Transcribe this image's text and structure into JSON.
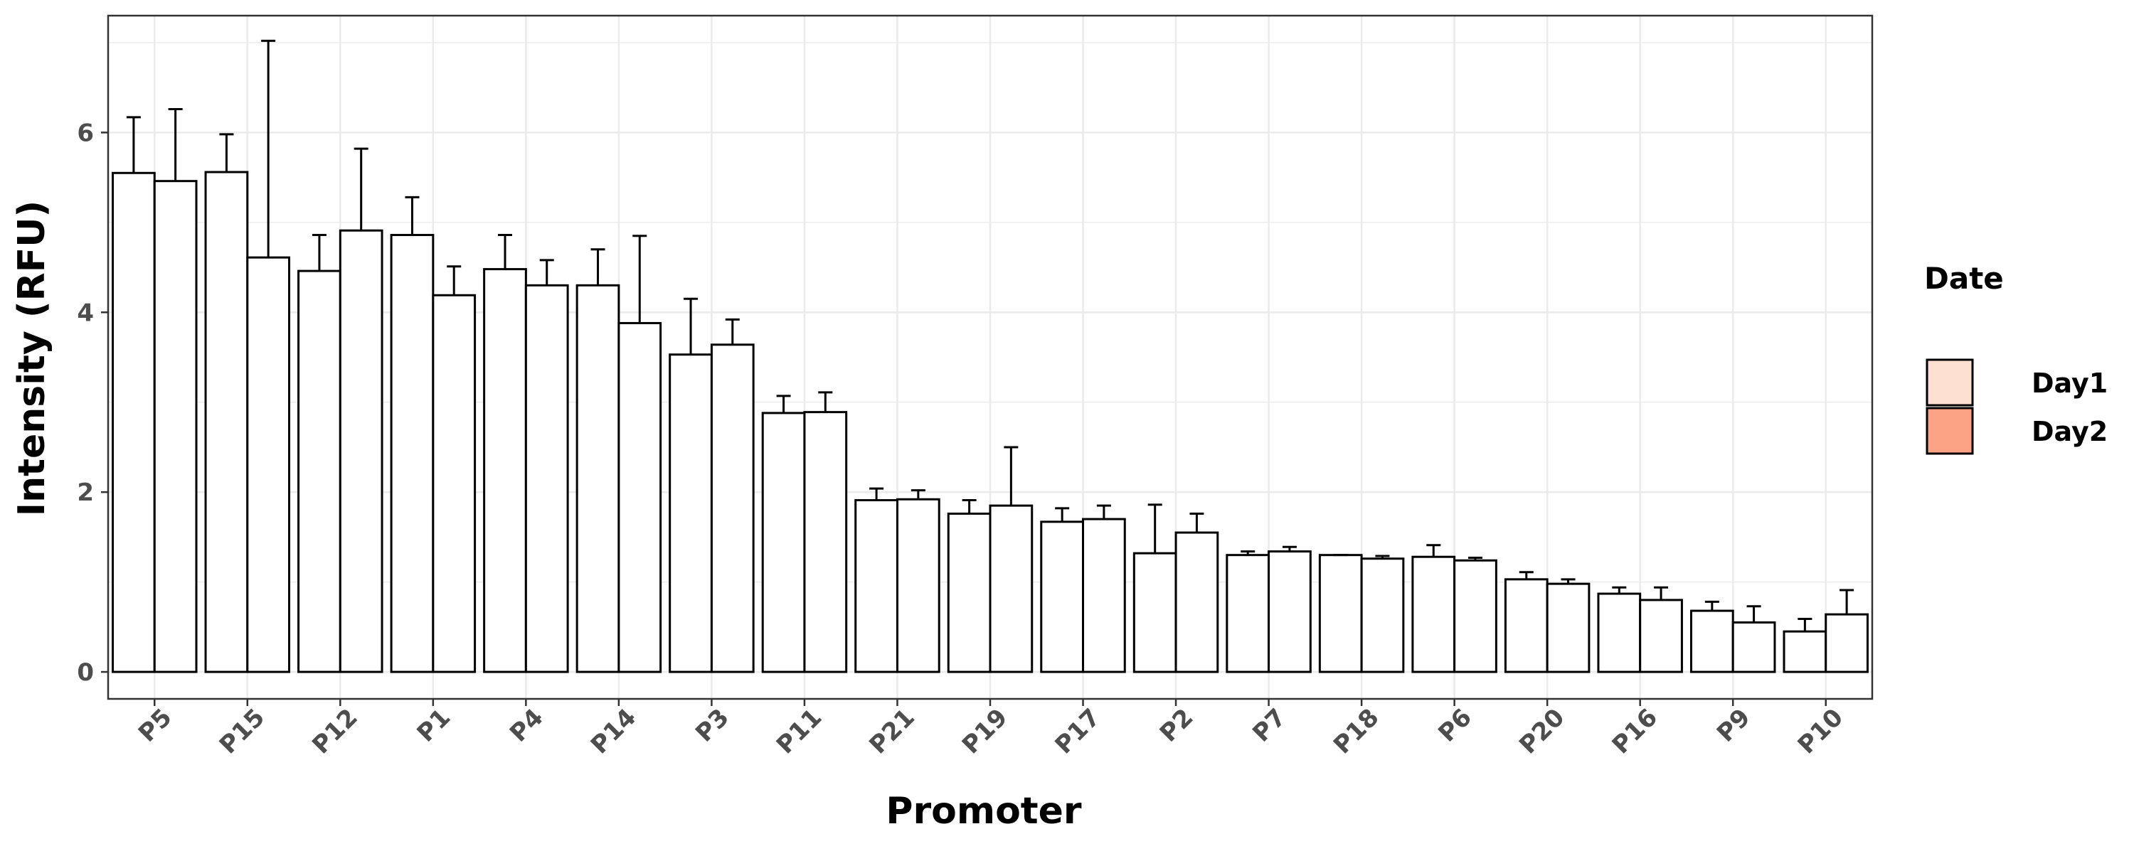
{
  "chart_data": {
    "type": "bar",
    "categories": [
      "P5",
      "P15",
      "P12",
      "P1",
      "P4",
      "P14",
      "P3",
      "P11",
      "P21",
      "P19",
      "P17",
      "P2",
      "P7",
      "P18",
      "P6",
      "P20",
      "P16",
      "P9",
      "P10"
    ],
    "series": [
      {
        "name": "Day1",
        "color": "#FEE0D2",
        "values": [
          5.55,
          5.56,
          4.46,
          4.86,
          4.48,
          4.3,
          3.53,
          2.88,
          1.91,
          1.76,
          1.67,
          1.32,
          1.3,
          1.3,
          1.28,
          1.03,
          0.87,
          0.68,
          0.45
        ],
        "error": [
          0.62,
          0.42,
          0.4,
          0.42,
          0.38,
          0.4,
          0.62,
          0.19,
          0.13,
          0.15,
          0.15,
          0.54,
          0.04,
          0.0,
          0.13,
          0.08,
          0.07,
          0.1,
          0.14
        ]
      },
      {
        "name": "Day2",
        "color": "#FCA285",
        "values": [
          5.46,
          4.61,
          4.91,
          4.19,
          4.3,
          3.88,
          3.64,
          2.89,
          1.92,
          1.85,
          1.7,
          1.55,
          1.34,
          1.26,
          1.24,
          0.98,
          0.8,
          0.55,
          0.64
        ],
        "error": [
          0.8,
          2.41,
          0.91,
          0.32,
          0.28,
          0.97,
          0.28,
          0.22,
          0.1,
          0.65,
          0.15,
          0.21,
          0.05,
          0.03,
          0.03,
          0.05,
          0.14,
          0.18,
          0.27
        ]
      }
    ],
    "bar_fill": "#FFFFFF",
    "xlabel": "Promoter",
    "ylabel": "Intensity (RFU)",
    "yticks": [
      0,
      2,
      4,
      6
    ],
    "ylim": [
      -0.3,
      7.3
    ],
    "grid": true,
    "legend": {
      "title": "Date",
      "position": "right"
    }
  }
}
